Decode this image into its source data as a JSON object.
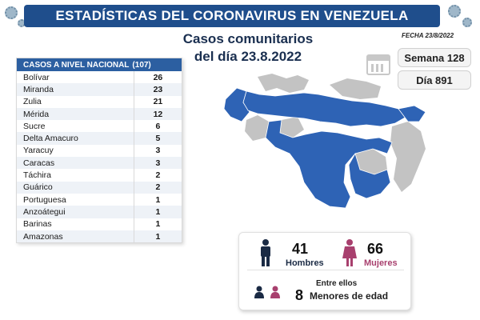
{
  "header": {
    "title": "ESTADÍSTICAS DEL CORONAVIRUS EN VENEZUELA"
  },
  "subtitle": {
    "line1": "Casos comunitarios",
    "line2": "del día 23.8.2022"
  },
  "date_label": "FECHA 23/8/2022",
  "week": "Semana 128",
  "day": "Día 891",
  "table": {
    "header": "CASOS A NIVEL NACIONAL",
    "total": "(107)",
    "rows": [
      {
        "name": "Bolívar",
        "value": "26"
      },
      {
        "name": "Miranda",
        "value": "23"
      },
      {
        "name": "Zulia",
        "value": "21"
      },
      {
        "name": "Mérida",
        "value": "12"
      },
      {
        "name": "Sucre",
        "value": "6"
      },
      {
        "name": "Delta Amacuro",
        "value": "5"
      },
      {
        "name": "Yaracuy",
        "value": "3"
      },
      {
        "name": "Caracas",
        "value": "3"
      },
      {
        "name": "Táchira",
        "value": "2"
      },
      {
        "name": "Guárico",
        "value": "2"
      },
      {
        "name": "Portuguesa",
        "value": "1"
      },
      {
        "name": "Anzoátegui",
        "value": "1"
      },
      {
        "name": "Barinas",
        "value": "1"
      },
      {
        "name": "Amazonas",
        "value": "1"
      }
    ]
  },
  "stats": {
    "men_count": "41",
    "men_label": "Hombres",
    "women_count": "66",
    "women_label": "Mujeres",
    "entre_label": "Entre ellos",
    "minors_count": "8",
    "minors_label": "Menores de edad"
  },
  "colors": {
    "header_bg": "#1f4e8c",
    "table_header_bg": "#2c5fa1",
    "map_affected": "#2e63b5",
    "map_unaffected": "#c3c3c3",
    "men": "#1a2a44",
    "women": "#a8406e"
  }
}
